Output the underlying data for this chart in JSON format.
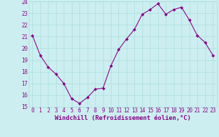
{
  "x": [
    0,
    1,
    2,
    3,
    4,
    5,
    6,
    7,
    8,
    9,
    10,
    11,
    12,
    13,
    14,
    15,
    16,
    17,
    18,
    19,
    20,
    21,
    22,
    23
  ],
  "y": [
    21.1,
    19.4,
    18.4,
    17.8,
    17.0,
    15.7,
    15.3,
    15.8,
    16.5,
    16.6,
    18.5,
    19.9,
    20.8,
    21.6,
    22.9,
    23.3,
    23.8,
    22.9,
    23.3,
    23.5,
    22.4,
    21.1,
    20.5,
    19.4
  ],
  "line_color": "#880088",
  "marker": "D",
  "marker_size": 2.0,
  "bg_color": "#cceef0",
  "grid_color": "#aadddd",
  "xlabel": "Windchill (Refroidissement éolien,°C)",
  "ylim": [
    15,
    24
  ],
  "xlim": [
    -0.5,
    23.5
  ],
  "yticks": [
    15,
    16,
    17,
    18,
    19,
    20,
    21,
    22,
    23,
    24
  ],
  "xticks": [
    0,
    1,
    2,
    3,
    4,
    5,
    6,
    7,
    8,
    9,
    10,
    11,
    12,
    13,
    14,
    15,
    16,
    17,
    18,
    19,
    20,
    21,
    22,
    23
  ],
  "tick_fontsize": 5.5,
  "xlabel_fontsize": 6.5,
  "line_width": 0.8
}
